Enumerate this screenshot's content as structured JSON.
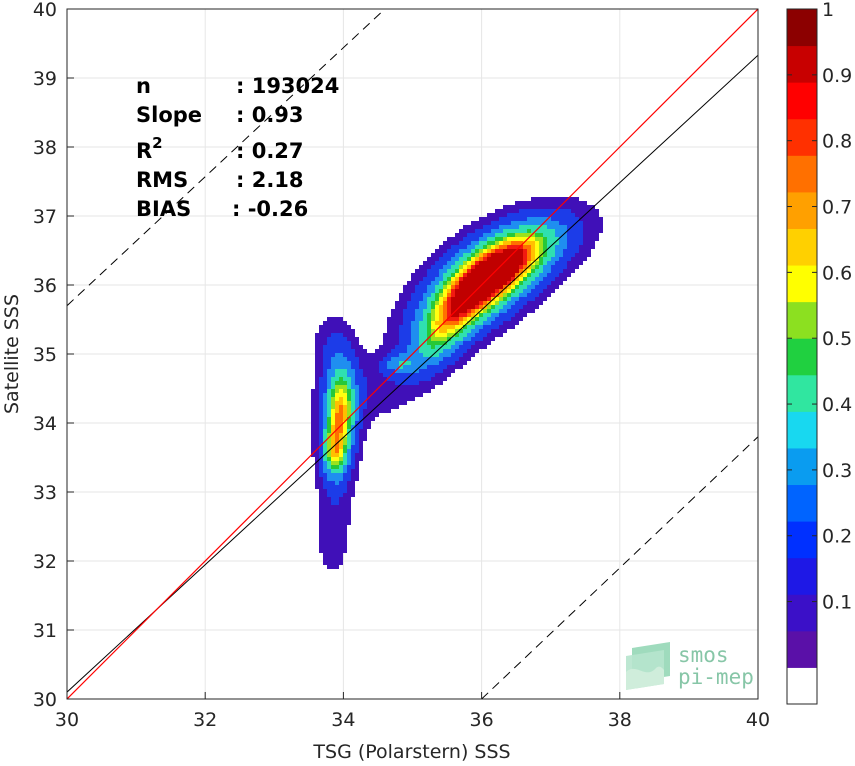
{
  "chart_data": {
    "type": "contour-density-scatter",
    "title": "",
    "xlabel": "TSG (Polarstern) SSS",
    "ylabel": "Satellite SSS",
    "xlim": [
      30,
      40
    ],
    "ylim": [
      30,
      40
    ],
    "x_ticks": [
      "30",
      "32",
      "34",
      "36",
      "38",
      "40"
    ],
    "y_ticks": [
      "30",
      "31",
      "32",
      "33",
      "34",
      "35",
      "36",
      "37",
      "38",
      "39",
      "40"
    ],
    "grid": true,
    "stats": [
      {
        "label": "n",
        "value": ": 193024"
      },
      {
        "label": "Slope",
        "value": ": 0.93"
      },
      {
        "label": "R",
        "sup": "2",
        "value": ": 0.27"
      },
      {
        "label": "RMS",
        "value": ": 2.18"
      },
      {
        "label": "BIAS",
        "value": ": -0.26"
      }
    ],
    "lines": {
      "one_to_one": {
        "color": "#ff0000",
        "from": [
          30,
          30
        ],
        "to": [
          40,
          40
        ]
      },
      "regression": {
        "color": "#000000",
        "from": [
          30,
          30.1
        ],
        "to": [
          40,
          39.33
        ]
      },
      "upper_bound": {
        "style": "dashed",
        "from": [
          30,
          35.7
        ],
        "to": [
          34.6,
          40
        ]
      },
      "lower_bound": {
        "style": "dashed",
        "from": [
          36,
          30
        ],
        "to": [
          40,
          33.8
        ]
      }
    },
    "colorbar": {
      "ticks": [
        "0.1",
        "0.2",
        "0.3",
        "0.4",
        "0.5",
        "0.6",
        "0.7",
        "0.8",
        "0.9",
        "1"
      ],
      "levels": 15,
      "colors": [
        "#ffffff",
        "#5a10a8",
        "#3b10c8",
        "#1e18e6",
        "#0030ff",
        "#0064ff",
        "#0a9cf0",
        "#18d8f0",
        "#30e6a0",
        "#20d040",
        "#8ce020",
        "#ffff00",
        "#ffd000",
        "#ffa000",
        "#ff7000",
        "#ff3000",
        "#ff0000",
        "#c80000",
        "#8c0000"
      ],
      "vmin": 0,
      "vmax": 1
    },
    "density_levels": [
      {
        "level": 0.05,
        "color": "#4010b8"
      },
      {
        "level": 0.13,
        "color": "#1c3ce8"
      },
      {
        "level": 0.27,
        "color": "#1f8ef0"
      },
      {
        "level": 0.4,
        "color": "#2fe0b0"
      },
      {
        "level": 0.53,
        "color": "#26c838"
      },
      {
        "level": 0.6,
        "color": "#9be21e"
      },
      {
        "level": 0.66,
        "color": "#ffff10"
      },
      {
        "level": 0.73,
        "color": "#ffc000"
      },
      {
        "level": 0.8,
        "color": "#ff7000"
      },
      {
        "level": 0.86,
        "color": "#f21a10"
      },
      {
        "level": 0.93,
        "color": "#c00000"
      }
    ],
    "density_blobs": [
      {
        "x": 36.0,
        "y": 36.0,
        "sx": 0.55,
        "sy": 0.45,
        "rho": 0.6,
        "amp": 1.0
      },
      {
        "x": 36.55,
        "y": 36.5,
        "sx": 0.55,
        "sy": 0.35,
        "rho": 0.5,
        "amp": 0.45
      },
      {
        "x": 35.4,
        "y": 35.25,
        "sx": 0.35,
        "sy": 0.4,
        "rho": 0.6,
        "amp": 0.42
      },
      {
        "x": 34.8,
        "y": 34.85,
        "sx": 0.16,
        "sy": 0.1,
        "rho": 0.0,
        "amp": 0.25
      },
      {
        "x": 33.95,
        "y": 34.1,
        "sx": 0.16,
        "sy": 0.55,
        "rho": 0.1,
        "amp": 0.75
      },
      {
        "x": 33.85,
        "y": 33.55,
        "sx": 0.12,
        "sy": 0.25,
        "rho": 0.0,
        "amp": 0.35
      },
      {
        "x": 34.3,
        "y": 34.45,
        "sx": 0.45,
        "sy": 0.35,
        "rho": 0.3,
        "amp": 0.1
      },
      {
        "x": 33.85,
        "y": 32.45,
        "sx": 0.18,
        "sy": 0.5,
        "rho": 0.0,
        "amp": 0.1
      },
      {
        "x": 33.8,
        "y": 35.1,
        "sx": 0.18,
        "sy": 0.3,
        "rho": 0.0,
        "amp": 0.1
      }
    ]
  },
  "logo": {
    "line1": "smos",
    "line2": "pi-mep"
  }
}
